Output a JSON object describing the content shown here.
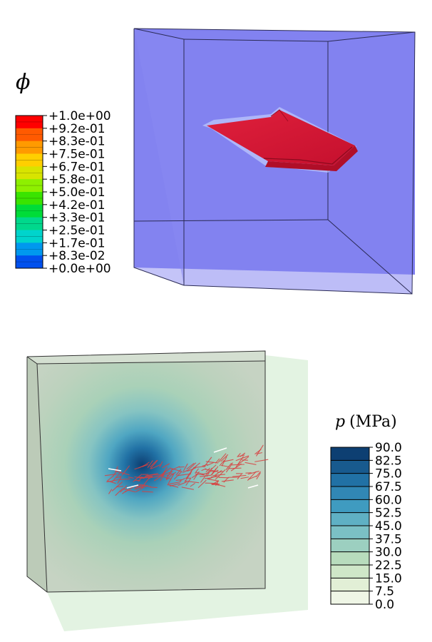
{
  "phi_panel": {
    "legend_title": "ϕ",
    "legend_labels": [
      "+1.0e+00",
      "+9.2e-01",
      "+8.3e-01",
      "+7.5e-01",
      "+6.7e-01",
      "+5.8e-01",
      "+5.0e-01",
      "+4.2e-01",
      "+3.3e-01",
      "+2.5e-01",
      "+1.7e-01",
      "+8.3e-02",
      "+0.0e+00"
    ],
    "legend_colors": [
      "#ff0000",
      "#ff5a00",
      "#ff9a00",
      "#ffcf00",
      "#d8e400",
      "#8ef000",
      "#3ae400",
      "#00dc38",
      "#00d88c",
      "#00d4cc",
      "#0098ee",
      "#0050ee",
      "#0020e6"
    ],
    "box_color": "#7f7ff0",
    "crack_color": "#d8163a"
  },
  "pressure_panel": {
    "legend_title": "p (MPa)",
    "legend_labels": [
      "90.0",
      "82.5",
      "75.0",
      "67.5",
      "60.0",
      "52.5",
      "45.0",
      "37.5",
      "30.0",
      "22.5",
      "15.0",
      "7.5",
      "0.0"
    ],
    "legend_colors": [
      "#0d3f72",
      "#185a8e",
      "#2171a5",
      "#3187b5",
      "#3f9bc0",
      "#5fb0c4",
      "#7bc0c5",
      "#9ccfc0",
      "#b8dcbd",
      "#cfe7c8",
      "#e2efd6",
      "#eff6e6"
    ],
    "block_color": "#c4d1c0",
    "plane_color": "#e3f3e2",
    "fiber_color": "#d84040"
  }
}
